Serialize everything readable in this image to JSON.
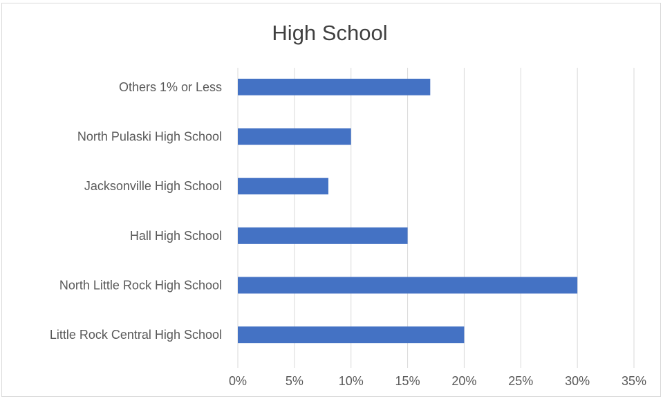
{
  "chart_data": {
    "type": "bar",
    "orientation": "horizontal",
    "title": "High School",
    "categories": [
      "Others 1% or Less",
      "North Pulaski High School",
      "Jacksonville High School",
      "Hall High School",
      "North Little Rock High School",
      "Little Rock Central High School"
    ],
    "values": [
      17,
      10,
      8,
      15,
      30,
      20
    ],
    "xlim": [
      0,
      35
    ],
    "x_ticks": [
      "0%",
      "5%",
      "10%",
      "15%",
      "20%",
      "25%",
      "30%",
      "35%"
    ],
    "tick_values": [
      0,
      5,
      10,
      15,
      20,
      25,
      30,
      35
    ],
    "xlabel": "",
    "ylabel": "",
    "grid": "vertical",
    "legend": "none",
    "bar_color": "#4472c4",
    "grid_color": "#d9d9d9"
  }
}
